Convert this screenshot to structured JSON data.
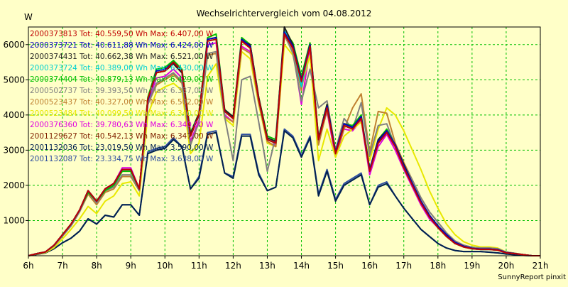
{
  "chart_data": {
    "type": "line",
    "title": "Wechselrichtervergleich vom 04.08.2012",
    "ylabel": "W",
    "xlabel": "",
    "footer": "SunnyReport pinxit",
    "ylim": [
      0,
      6500
    ],
    "xlim": [
      6,
      21
    ],
    "x_ticks": [
      "6h",
      "7h",
      "8h",
      "9h",
      "10h",
      "11h",
      "12h",
      "13h",
      "14h",
      "15h",
      "16h",
      "17h",
      "18h",
      "19h",
      "20h",
      "21h"
    ],
    "y_ticks": [
      "1000",
      "2000",
      "3000",
      "4000",
      "5000",
      "6000"
    ],
    "grid": true,
    "legend_position": "top-left",
    "x": [
      6.0,
      6.25,
      6.5,
      6.75,
      7.0,
      7.25,
      7.5,
      7.75,
      8.0,
      8.25,
      8.5,
      8.75,
      9.0,
      9.25,
      9.5,
      9.75,
      10.0,
      10.25,
      10.5,
      10.75,
      11.0,
      11.25,
      11.5,
      11.75,
      12.0,
      12.25,
      12.5,
      12.75,
      13.0,
      13.25,
      13.5,
      13.75,
      14.0,
      14.25,
      14.5,
      14.75,
      15.0,
      15.25,
      15.5,
      15.75,
      16.0,
      16.25,
      16.5,
      16.75,
      17.0,
      17.25,
      17.5,
      17.75,
      18.0,
      18.25,
      18.5,
      18.75,
      19.0,
      19.25,
      19.5,
      19.75,
      20.0,
      20.25,
      20.5,
      20.75,
      21.0
    ],
    "series": [
      {
        "name": "2000373813 Tot: 40.559,50 Wh Max: 6.407,00 W",
        "color": "#c00000",
        "values": [
          0,
          60,
          110,
          300,
          600,
          900,
          1300,
          1850,
          1550,
          1900,
          2050,
          2450,
          2450,
          1900,
          4450,
          5200,
          5250,
          5500,
          5250,
          3400,
          4000,
          6100,
          6150,
          4100,
          3900,
          6100,
          5900,
          4450,
          3300,
          3200,
          6300,
          5900,
          4950,
          5950,
          3300,
          4200,
          2900,
          3700,
          3600,
          3900,
          2400,
          3200,
          3500,
          3100,
          2500,
          2000,
          1500,
          1100,
          800,
          550,
          350,
          250,
          200,
          180,
          180,
          160,
          80,
          60,
          30,
          0,
          0
        ]
      },
      {
        "name": "2000373721 Tot: 40.611,88 Wh Max: 6.424,00 W",
        "color": "#0000c0",
        "values": [
          0,
          60,
          110,
          300,
          600,
          900,
          1300,
          1850,
          1550,
          1900,
          2050,
          2450,
          2450,
          1900,
          4400,
          5250,
          5300,
          5500,
          5250,
          3400,
          4000,
          6150,
          6200,
          4100,
          3900,
          6150,
          5950,
          4450,
          3300,
          3200,
          6350,
          5950,
          5000,
          6000,
          3300,
          4250,
          2950,
          3750,
          3650,
          3950,
          2450,
          3250,
          3550,
          3150,
          2550,
          2050,
          1550,
          1150,
          850,
          600,
          380,
          270,
          210,
          190,
          190,
          170,
          90,
          60,
          30,
          0,
          0
        ]
      },
      {
        "name": "2000374431 Tot: 40.662,38 Wh Max: 6.521,00 W",
        "color": "#202020",
        "values": [
          0,
          60,
          110,
          300,
          600,
          900,
          1300,
          1850,
          1550,
          1900,
          2050,
          2450,
          2450,
          1900,
          4450,
          5200,
          5250,
          5450,
          5200,
          3450,
          4050,
          6150,
          6200,
          4150,
          3950,
          6100,
          6000,
          4500,
          3350,
          3250,
          6500,
          6000,
          5000,
          6000,
          3350,
          4300,
          2950,
          3750,
          3650,
          3950,
          2450,
          3300,
          3550,
          3150,
          2600,
          2050,
          1550,
          1150,
          850,
          600,
          380,
          270,
          210,
          190,
          190,
          170,
          90,
          60,
          30,
          0,
          0
        ]
      },
      {
        "name": "2000373724 Tot: 40.389,00 Wh Max: 6.430,00 W",
        "color": "#00d0d0",
        "values": [
          0,
          60,
          110,
          300,
          600,
          900,
          1300,
          1850,
          1550,
          1900,
          2050,
          2450,
          2450,
          1900,
          4400,
          5200,
          5250,
          5450,
          5200,
          3400,
          4000,
          6100,
          6150,
          4100,
          3900,
          6100,
          5900,
          4450,
          3300,
          3200,
          6400,
          5950,
          4800,
          6000,
          3300,
          4200,
          2900,
          3700,
          3600,
          3900,
          2400,
          3200,
          3500,
          3100,
          2500,
          2000,
          1500,
          1100,
          800,
          550,
          350,
          250,
          200,
          180,
          180,
          160,
          80,
          60,
          30,
          0,
          0
        ]
      },
      {
        "name": "2000374404 Tot: 40.879,13 Wh Max: 6.429,00 W",
        "color": "#00c000",
        "values": [
          0,
          60,
          110,
          300,
          600,
          900,
          1300,
          1800,
          1550,
          1850,
          2000,
          2400,
          2400,
          1900,
          4500,
          5300,
          5350,
          5550,
          5300,
          3500,
          4050,
          6200,
          6300,
          4150,
          3950,
          6200,
          6000,
          4500,
          3400,
          3300,
          6400,
          6050,
          5100,
          6050,
          3350,
          4300,
          2950,
          3750,
          3700,
          4000,
          2450,
          3300,
          3600,
          3150,
          2550,
          2050,
          1550,
          1150,
          800,
          550,
          350,
          250,
          200,
          180,
          180,
          160,
          80,
          60,
          30,
          0,
          0
        ]
      },
      {
        "name": "2000502737 Tot: 39.393,50 Wh Max: 6.337,00 W",
        "color": "#808080",
        "values": [
          0,
          60,
          110,
          280,
          560,
          850,
          1250,
          1800,
          1500,
          1850,
          1950,
          2300,
          2300,
          1850,
          4300,
          4900,
          5050,
          5200,
          4950,
          3150,
          3800,
          5750,
          5800,
          3950,
          2700,
          5000,
          5100,
          3800,
          2400,
          3400,
          6300,
          5750,
          4400,
          5300,
          4200,
          4400,
          3000,
          3900,
          3600,
          4350,
          2850,
          3700,
          3750,
          3100,
          2600,
          2150,
          1650,
          1250,
          950,
          650,
          420,
          300,
          240,
          220,
          220,
          200,
          100,
          70,
          30,
          0,
          0
        ]
      },
      {
        "name": "2000523437 Tot: 40.327,00 Wh Max: 6.502,00 W",
        "color": "#c08030",
        "values": [
          0,
          60,
          110,
          280,
          560,
          850,
          1250,
          1750,
          1450,
          1800,
          1900,
          2250,
          2250,
          1850,
          4300,
          4850,
          5000,
          5150,
          4900,
          3150,
          3800,
          5700,
          5750,
          3950,
          3800,
          5900,
          5750,
          4350,
          3250,
          3100,
          6250,
          5800,
          4700,
          6050,
          3150,
          4150,
          2900,
          3600,
          4200,
          4600,
          2950,
          4100,
          4050,
          3200,
          2650,
          2150,
          1650,
          1250,
          950,
          650,
          420,
          300,
          240,
          220,
          220,
          200,
          100,
          70,
          30,
          0,
          0
        ]
      },
      {
        "name": "2000523484 Tot: 40.099,50 Wh Max: 6.340,00 W",
        "color": "#e8e800",
        "values": [
          0,
          50,
          90,
          230,
          480,
          750,
          1050,
          1400,
          1200,
          1550,
          1700,
          2050,
          2100,
          1700,
          4000,
          4650,
          4800,
          4900,
          4700,
          2900,
          3200,
          5100,
          5450,
          3900,
          3700,
          5800,
          5600,
          4300,
          3200,
          3100,
          6000,
          5700,
          4800,
          5700,
          2700,
          3600,
          2800,
          3400,
          3600,
          3800,
          2700,
          3600,
          4200,
          4000,
          3550,
          3000,
          2450,
          1850,
          1350,
          900,
          600,
          400,
          300,
          250,
          250,
          220,
          110,
          70,
          30,
          0,
          0
        ]
      },
      {
        "name": "2000376360 Tot: 39.780,63 Wh Max: 6.340,00 W",
        "color": "#e000e0",
        "values": [
          0,
          60,
          110,
          300,
          600,
          900,
          1300,
          1850,
          1550,
          1900,
          2050,
          2500,
          2500,
          1900,
          4350,
          5050,
          5100,
          5300,
          5050,
          3250,
          3850,
          6000,
          6050,
          4000,
          3800,
          5950,
          5800,
          4350,
          3200,
          3150,
          6300,
          5850,
          4300,
          5900,
          3250,
          4100,
          2800,
          3600,
          3550,
          3850,
          2300,
          3100,
          3450,
          3000,
          2450,
          1950,
          1450,
          1050,
          800,
          550,
          350,
          250,
          200,
          180,
          180,
          160,
          80,
          60,
          30,
          0,
          0
        ]
      },
      {
        "name": "2001129627 Tot: 40.542,13 Wh Max: 6.347,00 W",
        "color": "#802000",
        "values": [
          0,
          60,
          110,
          300,
          600,
          900,
          1300,
          1850,
          1550,
          1900,
          2050,
          2450,
          2450,
          1900,
          4400,
          5200,
          5250,
          5450,
          5200,
          3400,
          4000,
          6100,
          6150,
          4100,
          3900,
          6100,
          5900,
          4450,
          3300,
          3200,
          6300,
          5900,
          4950,
          5950,
          3300,
          4200,
          2900,
          3700,
          3600,
          3900,
          2400,
          3200,
          3500,
          3100,
          2500,
          2000,
          1500,
          1100,
          800,
          550,
          350,
          250,
          200,
          180,
          180,
          160,
          80,
          60,
          30,
          0,
          0
        ]
      },
      {
        "name": "2001132036 Tot: 23.019,50 Wh Max: 3.590,00 W",
        "color": "#002050",
        "values": [
          0,
          40,
          80,
          200,
          370,
          500,
          700,
          1050,
          900,
          1150,
          1100,
          1450,
          1450,
          1150,
          2900,
          3000,
          3050,
          3300,
          3100,
          1900,
          2200,
          3450,
          3500,
          2350,
          2200,
          3400,
          3400,
          2300,
          1850,
          1950,
          3550,
          3350,
          2800,
          3350,
          1700,
          2400,
          1550,
          2000,
          2150,
          2300,
          1450,
          1950,
          2050,
          1700,
          1350,
          1050,
          750,
          550,
          350,
          220,
          150,
          120,
          120,
          120,
          100,
          80,
          50,
          30,
          10,
          0,
          0
        ]
      },
      {
        "name": "2001132087 Tot: 23.334,75 Wh Max: 3.638,00 W",
        "color": "#3050a0",
        "values": [
          0,
          40,
          80,
          200,
          370,
          500,
          700,
          1050,
          900,
          1150,
          1100,
          1450,
          1450,
          1150,
          2950,
          3050,
          3100,
          3350,
          3100,
          1900,
          2250,
          3500,
          3550,
          2350,
          2250,
          3450,
          3450,
          2350,
          1850,
          1950,
          3600,
          3400,
          2850,
          3400,
          1750,
          2450,
          1600,
          2050,
          2200,
          2350,
          1450,
          2000,
          2100,
          1700,
          1350,
          1050,
          750,
          550,
          350,
          220,
          150,
          120,
          120,
          120,
          100,
          80,
          50,
          30,
          10,
          0,
          0
        ]
      }
    ]
  }
}
